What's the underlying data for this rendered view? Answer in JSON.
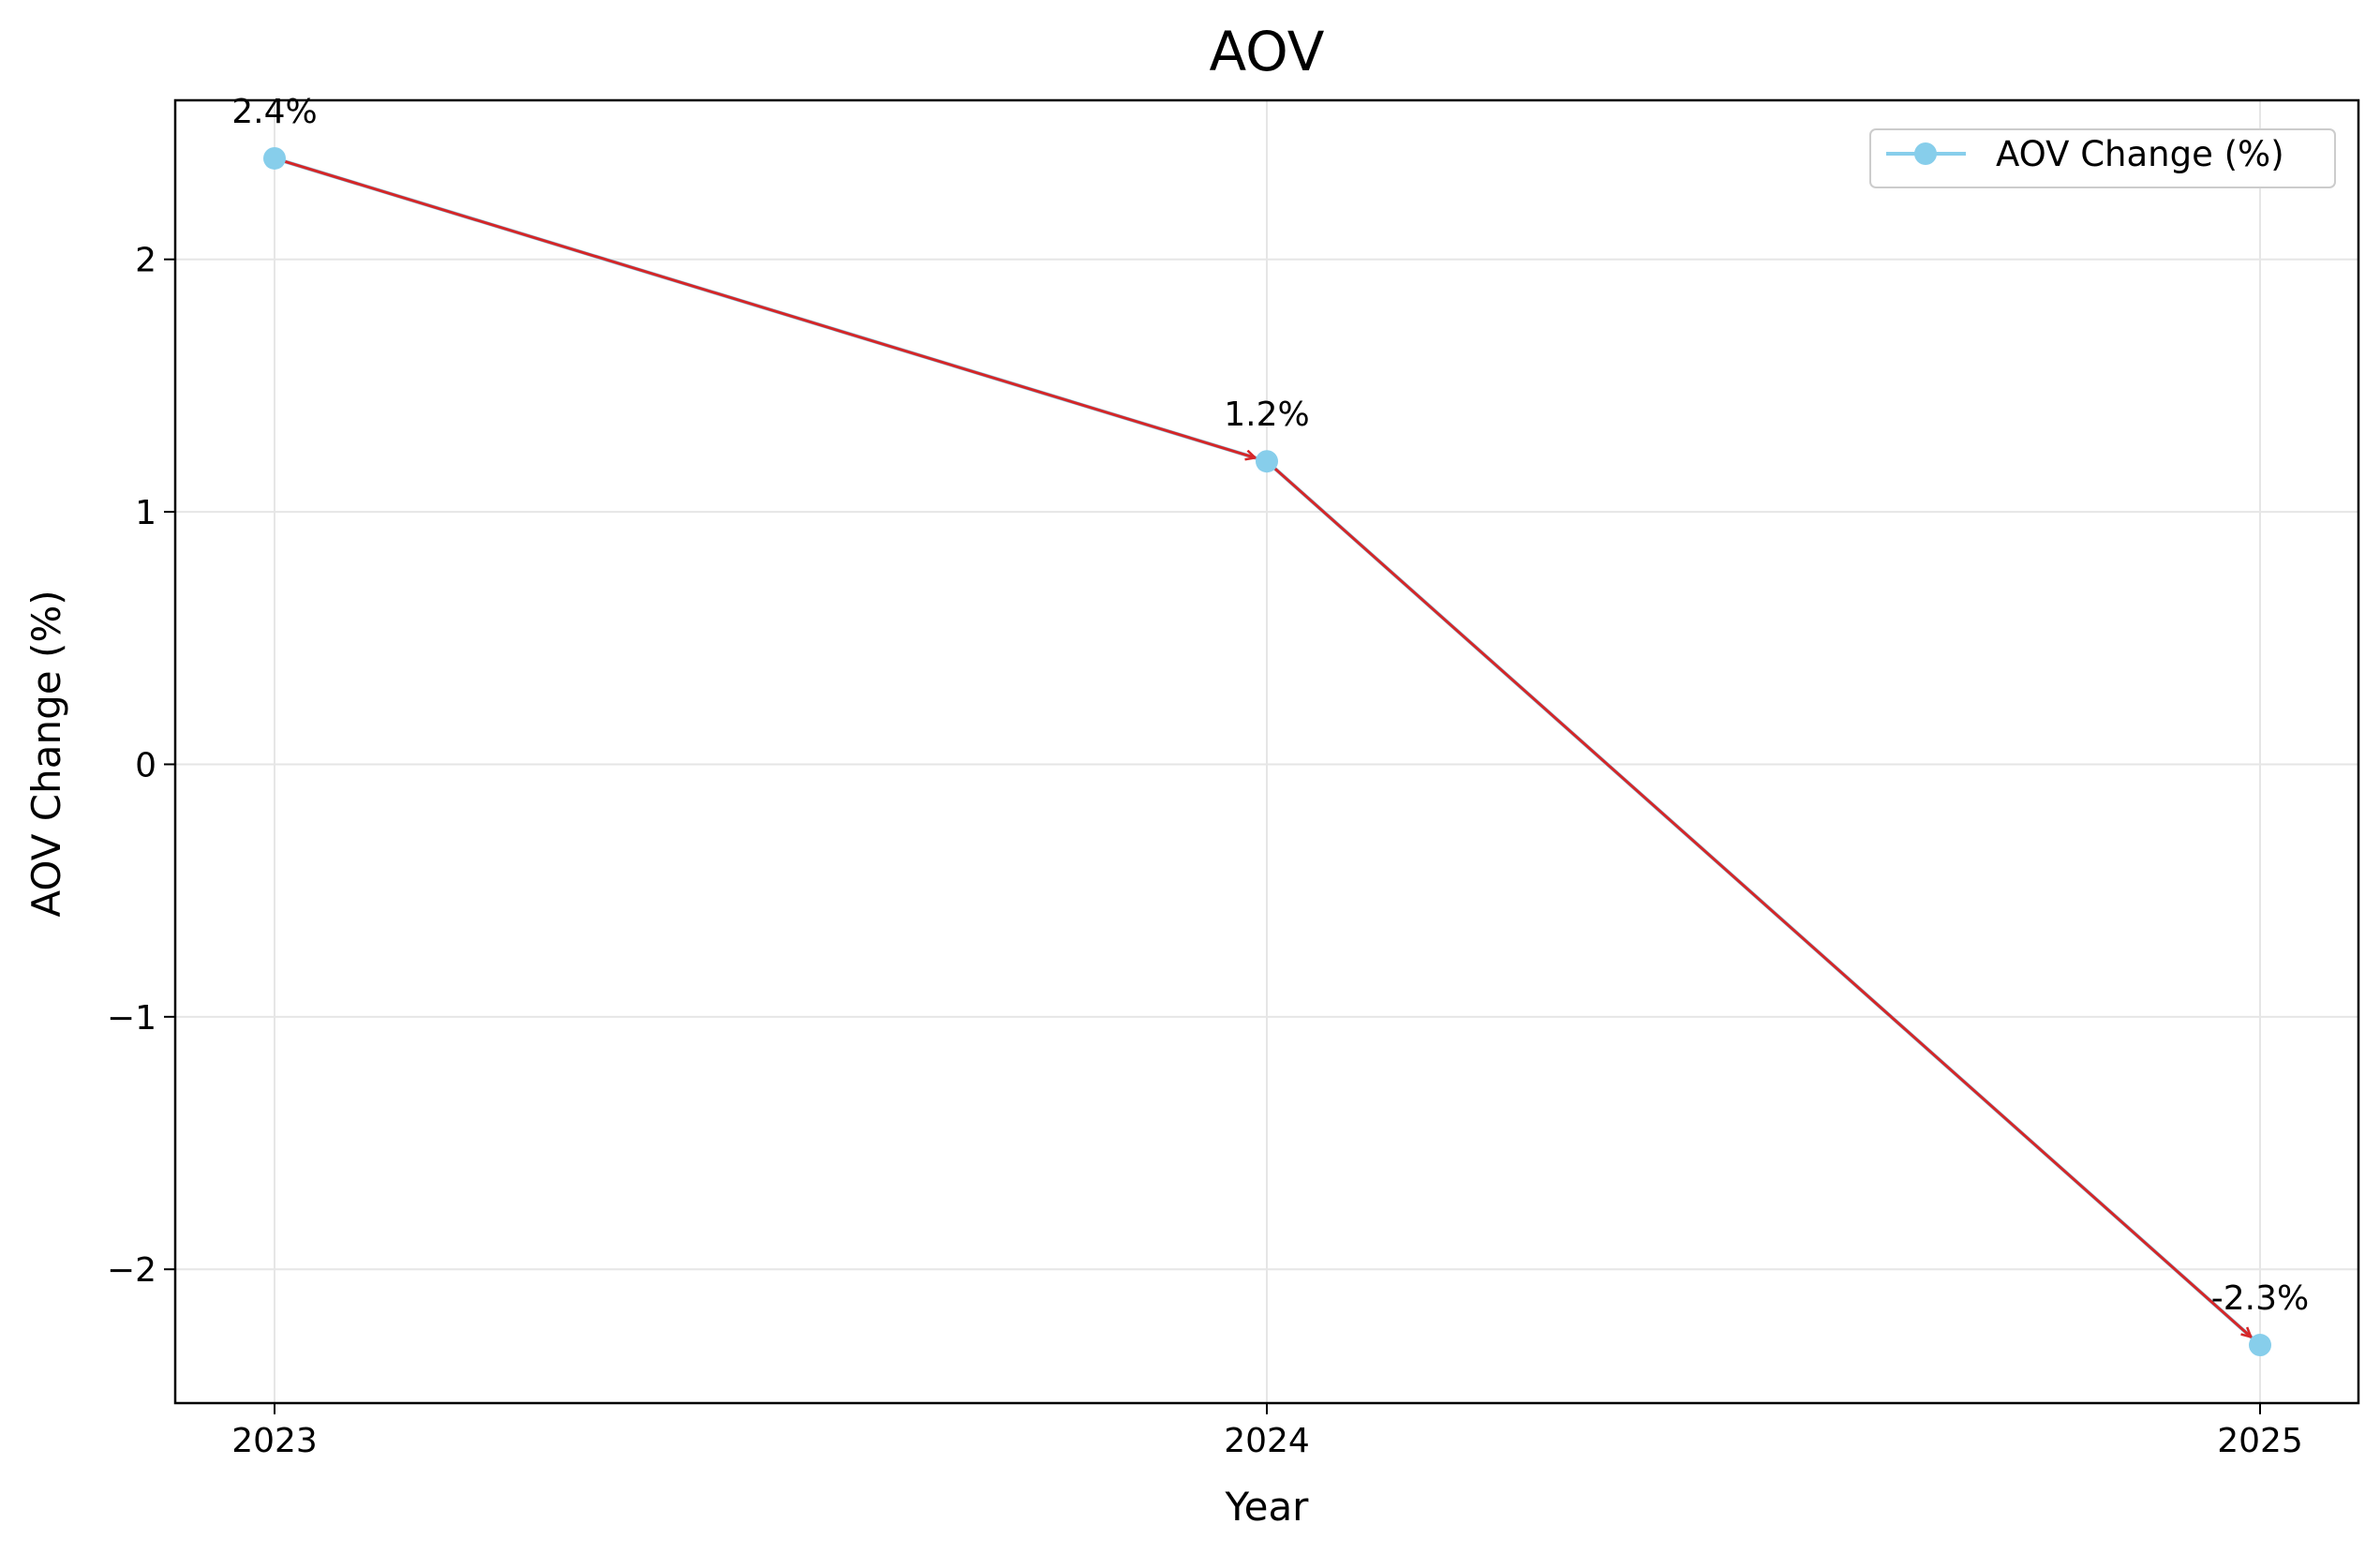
{
  "chart_data": {
    "type": "line",
    "title": "AOV",
    "xlabel": "Year",
    "ylabel": "AOV Change (%)",
    "categories": [
      "2023",
      "2024",
      "2025"
    ],
    "series": [
      {
        "name": "AOV Change (%)",
        "values": [
          2.4,
          1.2,
          -2.3
        ],
        "data_labels": [
          "2.4%",
          "1.2%",
          "-2.3%"
        ],
        "color": "#87ceeb",
        "marker": "circle"
      }
    ],
    "trend_arrows": {
      "color": "#d62728",
      "segments": [
        {
          "from": "2023",
          "to": "2024"
        },
        {
          "from": "2024",
          "to": "2025"
        }
      ]
    },
    "yticks": [
      2,
      1,
      0,
      -1,
      -2
    ],
    "ytick_labels": [
      "2",
      "1",
      "0",
      "−1",
      "−2"
    ],
    "ylim": [
      -2.53,
      2.63
    ],
    "grid": true,
    "legend_position": "top-right"
  }
}
